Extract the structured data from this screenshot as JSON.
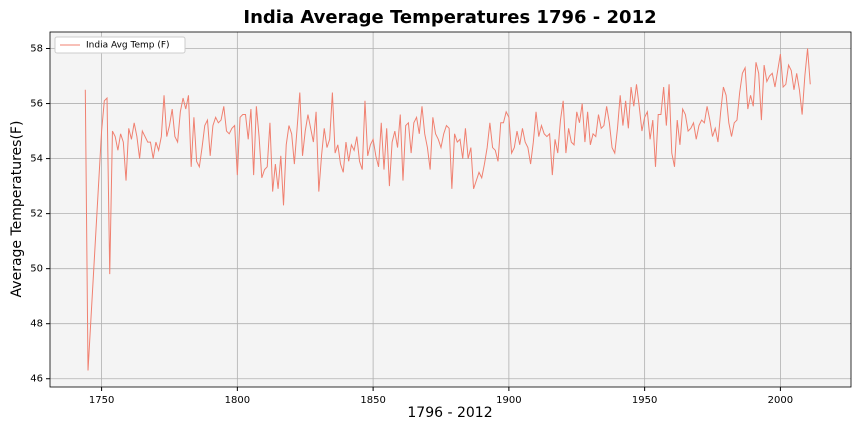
{
  "chart_data": {
    "type": "line",
    "title": "India Average Temperatures 1796 - 2012",
    "x_label": "1796 - 2012",
    "y_label": "Average Temperatures(F)",
    "xlim": [
      1731,
      2026
    ],
    "ylim": [
      45.7,
      58.6
    ],
    "xticks": [
      1750,
      1800,
      1850,
      1900,
      1950,
      2000
    ],
    "yticks": [
      46,
      48,
      50,
      52,
      54,
      56,
      58
    ],
    "grid": true,
    "legend": "upper left",
    "x": [
      1744,
      1745,
      1750,
      1751,
      1752,
      1753,
      1754,
      1755,
      1756,
      1757,
      1758,
      1759,
      1760,
      1761,
      1762,
      1763,
      1764,
      1765,
      1766,
      1767,
      1768,
      1769,
      1770,
      1771,
      1772,
      1773,
      1774,
      1775,
      1776,
      1777,
      1778,
      1779,
      1780,
      1781,
      1782,
      1783,
      1784,
      1785,
      1786,
      1787,
      1788,
      1789,
      1790,
      1791,
      1792,
      1793,
      1794,
      1795,
      1796,
      1797,
      1798,
      1799,
      1800,
      1801,
      1802,
      1803,
      1804,
      1805,
      1806,
      1807,
      1808,
      1809,
      1810,
      1811,
      1812,
      1813,
      1814,
      1815,
      1816,
      1817,
      1818,
      1819,
      1820,
      1821,
      1822,
      1823,
      1824,
      1825,
      1826,
      1827,
      1828,
      1829,
      1830,
      1831,
      1832,
      1833,
      1834,
      1835,
      1836,
      1837,
      1838,
      1839,
      1840,
      1841,
      1842,
      1843,
      1844,
      1845,
      1846,
      1847,
      1848,
      1849,
      1850,
      1851,
      1852,
      1853,
      1854,
      1855,
      1856,
      1857,
      1858,
      1859,
      1860,
      1861,
      1862,
      1863,
      1864,
      1865,
      1866,
      1867,
      1868,
      1869,
      1870,
      1871,
      1872,
      1873,
      1874,
      1875,
      1876,
      1877,
      1878,
      1879,
      1880,
      1881,
      1882,
      1883,
      1884,
      1885,
      1886,
      1887,
      1888,
      1889,
      1890,
      1891,
      1892,
      1893,
      1894,
      1895,
      1896,
      1897,
      1898,
      1899,
      1900,
      1901,
      1902,
      1903,
      1904,
      1905,
      1906,
      1907,
      1908,
      1909,
      1910,
      1911,
      1912,
      1913,
      1914,
      1915,
      1916,
      1917,
      1918,
      1919,
      1920,
      1921,
      1922,
      1923,
      1924,
      1925,
      1926,
      1927,
      1928,
      1929,
      1930,
      1931,
      1932,
      1933,
      1934,
      1935,
      1936,
      1937,
      1938,
      1939,
      1940,
      1941,
      1942,
      1943,
      1944,
      1945,
      1946,
      1947,
      1948,
      1949,
      1950,
      1951,
      1952,
      1953,
      1954,
      1955,
      1956,
      1957,
      1958,
      1959,
      1960,
      1961,
      1962,
      1963,
      1964,
      1965,
      1966,
      1967,
      1968,
      1969,
      1970,
      1971,
      1972,
      1973,
      1974,
      1975,
      1976,
      1977,
      1978,
      1979,
      1980,
      1981,
      1982,
      1983,
      1984,
      1985,
      1986,
      1987,
      1988,
      1989,
      1990,
      1991,
      1992,
      1993,
      1994,
      1995,
      1996,
      1997,
      1998,
      1999,
      2000,
      2001,
      2002,
      2003,
      2004,
      2005,
      2006,
      2007,
      2008,
      2009,
      2010,
      2011
    ],
    "series": [
      {
        "name": "India Avg Temp (F)",
        "color": "#f08070",
        "values": [
          56.5,
          46.3,
          55.0,
          56.1,
          56.2,
          49.8,
          55.0,
          54.8,
          54.3,
          54.9,
          54.6,
          53.2,
          55.1,
          54.7,
          55.3,
          54.8,
          54.0,
          55.0,
          54.8,
          54.6,
          54.6,
          54.0,
          54.6,
          54.3,
          54.8,
          56.3,
          54.8,
          55.2,
          55.8,
          54.8,
          54.6,
          55.7,
          56.2,
          55.8,
          56.3,
          53.7,
          55.5,
          53.9,
          53.7,
          54.4,
          55.2,
          55.4,
          54.1,
          55.2,
          55.5,
          55.3,
          55.4,
          55.9,
          55.0,
          54.9,
          55.1,
          55.2,
          53.4,
          55.5,
          55.6,
          55.6,
          54.7,
          55.8,
          53.4,
          55.9,
          54.8,
          53.3,
          53.6,
          53.7,
          55.3,
          52.8,
          53.8,
          52.9,
          54.1,
          52.3,
          54.5,
          55.2,
          54.9,
          53.8,
          55.1,
          56.4,
          54.1,
          55.0,
          55.6,
          55.1,
          54.6,
          55.7,
          52.8,
          54.1,
          55.1,
          54.4,
          54.7,
          56.4,
          54.2,
          54.5,
          53.8,
          53.5,
          54.6,
          53.9,
          54.5,
          54.3,
          54.8,
          53.9,
          53.6,
          56.1,
          54.1,
          54.5,
          54.7,
          54.1,
          53.7,
          55.3,
          53.6,
          55.1,
          53.0,
          54.6,
          55.0,
          54.4,
          55.6,
          53.2,
          55.2,
          55.3,
          54.2,
          55.3,
          55.5,
          54.9,
          55.9,
          54.9,
          54.4,
          53.6,
          55.5,
          54.9,
          54.7,
          54.4,
          54.9,
          55.2,
          55.1,
          52.9,
          54.9,
          54.6,
          54.7,
          54.0,
          55.1,
          54.0,
          54.4,
          52.9,
          53.2,
          53.5,
          53.3,
          53.8,
          54.4,
          55.3,
          54.4,
          54.3,
          53.9,
          55.3,
          55.3,
          55.7,
          55.5,
          54.2,
          54.4,
          55.0,
          54.5,
          55.1,
          54.6,
          54.4,
          53.8,
          54.6,
          55.7,
          54.8,
          55.2,
          54.9,
          54.8,
          54.9,
          53.4,
          54.7,
          54.2,
          55.4,
          56.1,
          54.2,
          55.1,
          54.6,
          54.5,
          55.7,
          55.3,
          56.0,
          54.6,
          55.7,
          54.5,
          54.9,
          54.8,
          55.6,
          55.1,
          55.2,
          55.9,
          55.3,
          54.4,
          54.2,
          55.1,
          56.3,
          55.2,
          56.1,
          55.1,
          56.6,
          55.9,
          56.7,
          55.9,
          55.0,
          55.5,
          55.7,
          54.7,
          55.4,
          53.7,
          55.6,
          55.6,
          56.6,
          55.2,
          56.7,
          54.2,
          53.7,
          55.4,
          54.5,
          55.8,
          55.6,
          55.0,
          55.1,
          55.3,
          54.7,
          55.2,
          55.4,
          55.3,
          55.9,
          55.4,
          54.8,
          55.1,
          54.6,
          55.7,
          56.6,
          56.3,
          55.3,
          54.8,
          55.3,
          55.4,
          56.4,
          57.1,
          57.3,
          55.8,
          56.3,
          55.9,
          57.5,
          57.1,
          55.4,
          57.4,
          56.8,
          57.0,
          57.1,
          56.6,
          57.2,
          57.8,
          56.6,
          56.7,
          57.4,
          57.2,
          56.5,
          57.1,
          56.5,
          55.6,
          57.0,
          58.0,
          56.7
        ]
      }
    ]
  }
}
